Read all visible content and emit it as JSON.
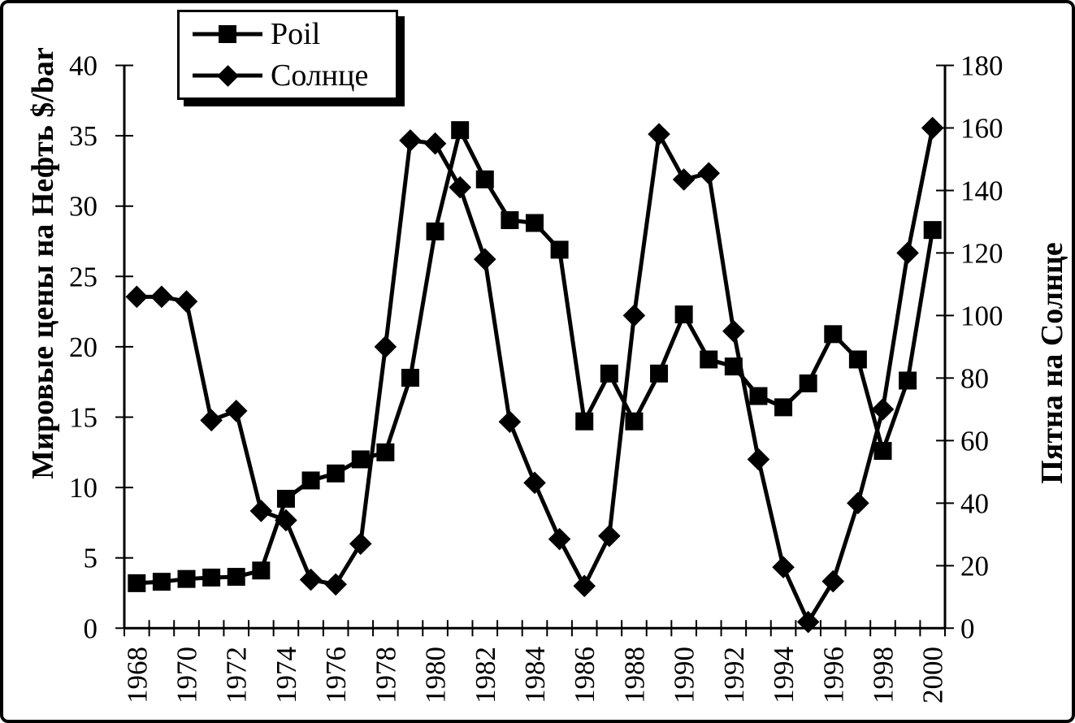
{
  "chart_data": {
    "type": "line",
    "title": "",
    "x": [
      1968,
      1969,
      1970,
      1971,
      1972,
      1973,
      1974,
      1975,
      1976,
      1977,
      1978,
      1979,
      1980,
      1981,
      1982,
      1983,
      1984,
      1985,
      1986,
      1987,
      1988,
      1989,
      1990,
      1991,
      1992,
      1993,
      1994,
      1995,
      1996,
      1997,
      1998,
      1999,
      2000
    ],
    "x_label_step": 2,
    "series": [
      {
        "name": "Poil",
        "marker": "square",
        "axis": "left",
        "values": [
          3.2,
          3.3,
          3.5,
          3.6,
          3.65,
          4.1,
          9.2,
          10.5,
          11.0,
          12.0,
          12.5,
          17.8,
          28.2,
          35.4,
          31.9,
          29.0,
          28.8,
          26.9,
          14.7,
          18.1,
          14.7,
          18.1,
          22.3,
          19.1,
          18.6,
          16.5,
          15.7,
          17.4,
          20.9,
          19.1,
          12.6,
          17.6,
          28.3
        ]
      },
      {
        "name": "Солнце",
        "marker": "diamond",
        "axis": "right",
        "values": [
          106,
          106,
          104.5,
          66.5,
          69.5,
          37.5,
          34.5,
          15.5,
          14,
          27,
          90,
          156,
          155,
          141,
          118,
          66,
          46.5,
          28.5,
          13.5,
          29.5,
          100,
          158,
          143.5,
          145.5,
          95,
          54,
          19.5,
          2,
          15,
          40,
          70,
          120,
          160
        ]
      }
    ],
    "left_axis": {
      "label": "Мировые цены на Нефть $/bar",
      "min": 0,
      "max": 40,
      "ticks": [
        0,
        5,
        10,
        15,
        20,
        25,
        30,
        35,
        40
      ]
    },
    "right_axis": {
      "label": "Пятна на Солнце",
      "min": 0,
      "max": 180,
      "ticks": [
        0,
        20,
        40,
        60,
        80,
        100,
        120,
        140,
        160,
        180
      ]
    },
    "legend": {
      "position": "top-left",
      "entries": [
        "Poil",
        "Солнце"
      ]
    },
    "colors": {
      "line": "#000000",
      "background": "#ffffff"
    },
    "grid": "off"
  }
}
